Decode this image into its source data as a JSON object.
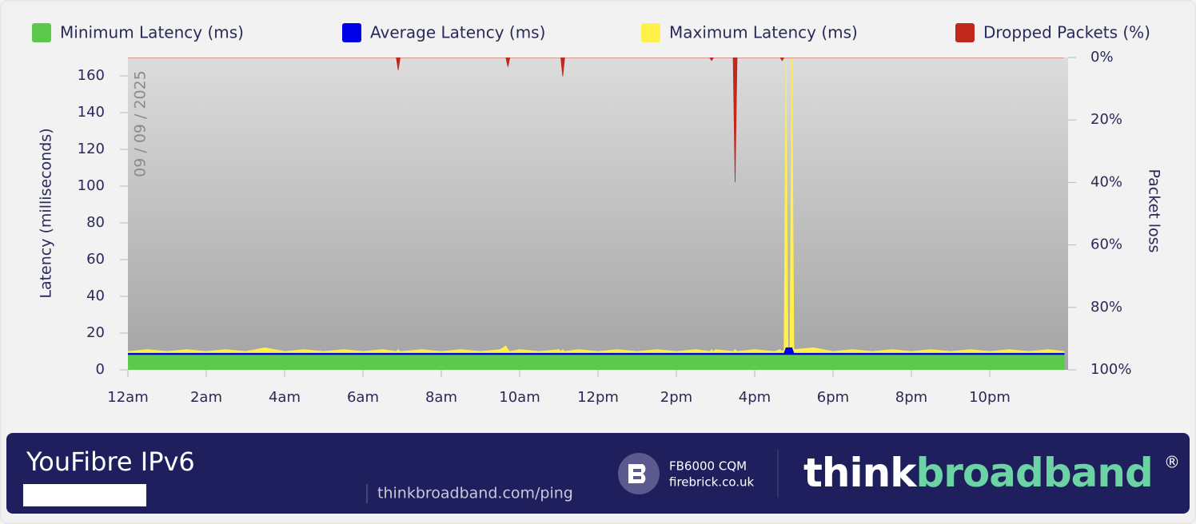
{
  "chart_data": {
    "type": "area",
    "annotation": "09 / 09 / 2025",
    "y_label": "Latency  (milliseconds)",
    "y2_label": "Packet loss",
    "legend": "top",
    "ylim": [
      0,
      170
    ],
    "yticks": [
      0,
      20,
      40,
      60,
      80,
      100,
      120,
      140,
      160
    ],
    "y2lim": [
      100,
      0
    ],
    "y2ticks": [
      {
        "value": 0,
        "label": "0%"
      },
      {
        "value": 20,
        "label": "20%"
      },
      {
        "value": 40,
        "label": "40%"
      },
      {
        "value": 60,
        "label": "60%"
      },
      {
        "value": 80,
        "label": "80%"
      },
      {
        "value": 100,
        "label": "100%"
      }
    ],
    "xlim": [
      0,
      24
    ],
    "xticks": [
      {
        "value": 0,
        "label": "12am"
      },
      {
        "value": 2,
        "label": "2am"
      },
      {
        "value": 4,
        "label": "4am"
      },
      {
        "value": 6,
        "label": "6am"
      },
      {
        "value": 8,
        "label": "8am"
      },
      {
        "value": 10,
        "label": "10am"
      },
      {
        "value": 12,
        "label": "12pm"
      },
      {
        "value": 14,
        "label": "2pm"
      },
      {
        "value": 16,
        "label": "4pm"
      },
      {
        "value": 18,
        "label": "6pm"
      },
      {
        "value": 20,
        "label": "8pm"
      },
      {
        "value": 22,
        "label": "10pm"
      }
    ],
    "x": [
      0,
      0.5,
      1,
      1.5,
      2,
      2.5,
      3,
      3.5,
      4,
      4.5,
      5,
      5.5,
      6,
      6.5,
      6.85,
      6.9,
      6.95,
      7,
      7.5,
      8,
      8.5,
      9,
      9.5,
      9.65,
      9.7,
      9.75,
      10,
      10.5,
      11,
      11.05,
      11.1,
      11.15,
      11.5,
      12,
      12.5,
      13,
      13.5,
      14,
      14.5,
      14.85,
      14.9,
      14.95,
      15,
      15.45,
      15.5,
      15.55,
      16,
      16.5,
      16.65,
      16.7,
      16.75,
      16.8,
      16.85,
      16.9,
      16.95,
      17,
      17.5,
      18,
      18.5,
      19,
      19.5,
      20,
      20.5,
      21,
      21.5,
      22,
      22.5,
      23,
      23.5,
      23.9
    ],
    "series": [
      {
        "name": "Minimum Latency (ms)",
        "color": "#5cc84c",
        "values": [
          8,
          8,
          8,
          8,
          8,
          8,
          8,
          8,
          8,
          8,
          8,
          8,
          8,
          8,
          8,
          8,
          8,
          8,
          8,
          8,
          8,
          8,
          8,
          8,
          8,
          8,
          8,
          8,
          8,
          8,
          8,
          8,
          8,
          8,
          8,
          8,
          8,
          8,
          8,
          8,
          8,
          8,
          8,
          8,
          8,
          8,
          8,
          8,
          8,
          8,
          8,
          8,
          8,
          8,
          8,
          8,
          8,
          8,
          8,
          8,
          8,
          8,
          8,
          8,
          8,
          8,
          8,
          8,
          8,
          8
        ]
      },
      {
        "name": "Average Latency (ms)",
        "color": "#0000e6",
        "values": [
          9,
          9,
          9,
          9,
          9,
          9,
          9,
          9,
          9,
          9,
          9,
          9,
          9,
          9,
          9,
          9,
          9,
          9,
          9,
          9,
          9,
          9,
          9,
          9,
          9,
          9,
          9,
          9,
          9,
          9,
          9,
          9,
          9,
          9,
          9,
          9,
          9,
          9,
          9,
          9,
          9,
          9,
          9,
          9,
          9,
          9,
          9,
          9,
          9,
          9,
          9,
          12,
          12,
          12,
          12,
          9,
          9,
          9,
          9,
          9,
          9,
          9,
          9,
          9,
          9,
          9,
          9,
          9,
          9,
          9
        ]
      },
      {
        "name": "Maximum Latency (ms)",
        "color": "#fff04a",
        "values": [
          10,
          11,
          10,
          11,
          10,
          11,
          10,
          12,
          10,
          11,
          10,
          11,
          10,
          11,
          10,
          11,
          10,
          10,
          11,
          10,
          11,
          10,
          11,
          13,
          11,
          10,
          11,
          10,
          11,
          10,
          11,
          10,
          11,
          10,
          11,
          10,
          11,
          10,
          11,
          10,
          11,
          10,
          11,
          10,
          11,
          10,
          11,
          10,
          11,
          10,
          11,
          171,
          12,
          12,
          171,
          11,
          12,
          10,
          11,
          10,
          11,
          10,
          11,
          10,
          11,
          10,
          11,
          10,
          11,
          10
        ]
      },
      {
        "name": "Dropped Packets (%)",
        "color": "#c0281e",
        "axis": "y2",
        "values": [
          0,
          0,
          0,
          0,
          0,
          0,
          0,
          0,
          0,
          0,
          0,
          0,
          0,
          0,
          0,
          4,
          0,
          0,
          0,
          0,
          0,
          0,
          0,
          0,
          3,
          0,
          0,
          0,
          0,
          0,
          6,
          0,
          0,
          0,
          0,
          0,
          0,
          0,
          0,
          0,
          1,
          0,
          0,
          0,
          40,
          0,
          0,
          0,
          0,
          1,
          0,
          0,
          0,
          0,
          0,
          0,
          0,
          0,
          0,
          0,
          0,
          0,
          0,
          0,
          0,
          0,
          0,
          0,
          0,
          0
        ]
      }
    ]
  },
  "footer": {
    "title": "YouFibre IPv6",
    "url": "thinkbroadband.com/ping",
    "sponsor_line1": "FB6000 CQM",
    "sponsor_line2": "firebrick.co.uk",
    "brand_think": "think",
    "brand_broadband": "broadband",
    "brand_mark": "®"
  }
}
